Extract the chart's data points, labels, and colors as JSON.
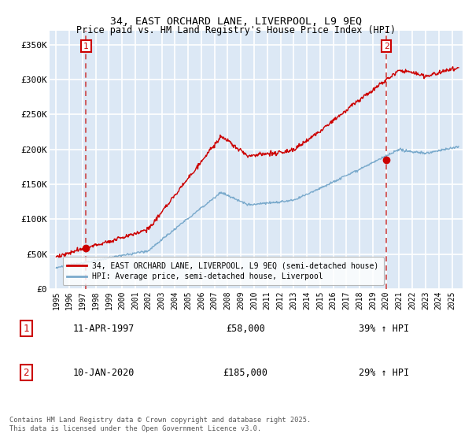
{
  "title": "34, EAST ORCHARD LANE, LIVERPOOL, L9 9EQ",
  "subtitle": "Price paid vs. HM Land Registry's House Price Index (HPI)",
  "ylabel_ticks": [
    "£0",
    "£50K",
    "£100K",
    "£150K",
    "£200K",
    "£250K",
    "£300K",
    "£350K"
  ],
  "ylim": [
    0,
    370000
  ],
  "xlim_start": 1994.5,
  "xlim_end": 2025.8,
  "purchase1_date": 1997.27,
  "purchase1_price": 58000,
  "purchase1_label": "1",
  "purchase2_date": 2020.03,
  "purchase2_price": 185000,
  "purchase2_label": "2",
  "legend_line1": "34, EAST ORCHARD LANE, LIVERPOOL, L9 9EQ (semi-detached house)",
  "legend_line2": "HPI: Average price, semi-detached house, Liverpool",
  "table_row1": [
    "1",
    "11-APR-1997",
    "£58,000",
    "39% ↑ HPI"
  ],
  "table_row2": [
    "2",
    "10-JAN-2020",
    "£185,000",
    "29% ↑ HPI"
  ],
  "footnote": "Contains HM Land Registry data © Crown copyright and database right 2025.\nThis data is licensed under the Open Government Licence v3.0.",
  "color_red": "#cc0000",
  "color_blue": "#7aaacc",
  "color_dashed": "#cc4444",
  "background_plot": "#dce8f5",
  "background_fig": "#ffffff",
  "grid_color": "#ffffff"
}
